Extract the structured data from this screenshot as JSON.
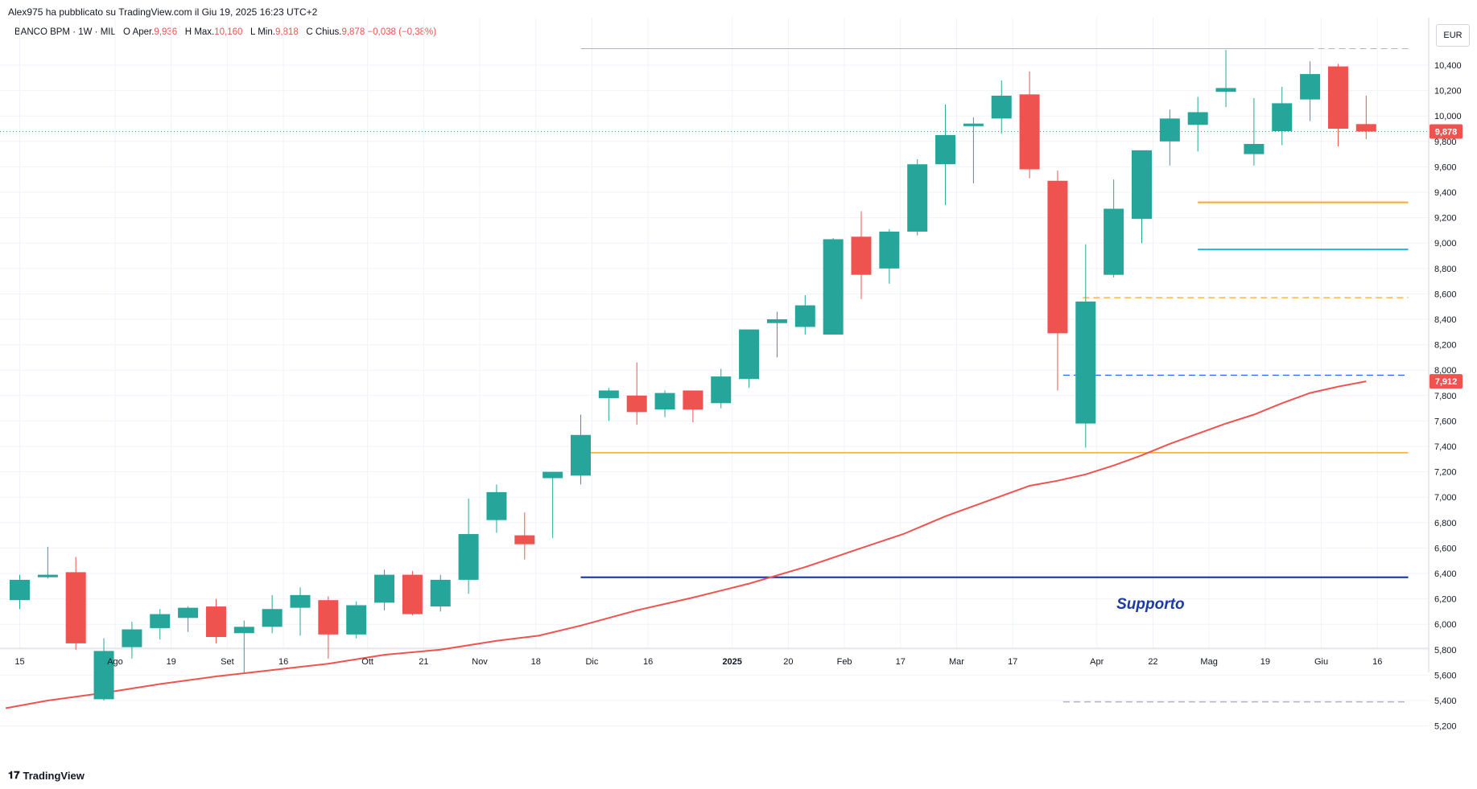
{
  "header": {
    "published": "Alex975 ha pubblicato su TradingView.com il Giu 19, 2025 16:23 UTC+2",
    "symbol": "BANCO BPM · 1W · MIL",
    "o_label": "O",
    "open_label": "Aper.",
    "open_val": "9,936",
    "h_label": "H",
    "high_label": "Max.",
    "high_val": "10,160",
    "l_label": "L",
    "low_label": "Min.",
    "low_val": "9,818",
    "c_label": "C",
    "close_label": "Chius.",
    "close_val": "9,878",
    "change": "−0,038 (−0,38%)"
  },
  "currency": "EUR",
  "footer": {
    "brand": "TradingView",
    "logo_icon": "tradingview-logo-icon"
  },
  "colors": {
    "up": "#26a69a",
    "down": "#ef5350",
    "ma": "#ef5350",
    "hline_orange": "#f9a825",
    "hline_cyan": "#26b6d4",
    "hline_blue": "#2962ff",
    "support_line": "#0d2ea8",
    "support_text": "#1b3aa8",
    "gray_line": "#b2b5be",
    "grid": "#f0f3fa"
  },
  "chart_data": {
    "type": "candlestick",
    "title": "BANCO BPM · 1W · MIL",
    "ylabel": "EUR",
    "ylim": [
      5.15,
      10.66
    ],
    "y_ticks": [
      "5,200",
      "5,400",
      "5,600",
      "5,800",
      "6,000",
      "6,200",
      "6,400",
      "6,600",
      "6,800",
      "7,000",
      "7,200",
      "7,400",
      "7,600",
      "7,800",
      "8,000",
      "8,200",
      "8,400",
      "8,600",
      "8,800",
      "9,000",
      "9,200",
      "9,400",
      "9,600",
      "9,800",
      "10,000",
      "10,200",
      "10,400"
    ],
    "x_ticks": [
      {
        "label": "15",
        "i": 0,
        "bold": false
      },
      {
        "label": "Ago",
        "i": 3.4,
        "bold": false
      },
      {
        "label": "19",
        "i": 5.4,
        "bold": false
      },
      {
        "label": "Set",
        "i": 7.4,
        "bold": false
      },
      {
        "label": "16",
        "i": 9.4,
        "bold": false
      },
      {
        "label": "Ott",
        "i": 12.4,
        "bold": false
      },
      {
        "label": "21",
        "i": 14.4,
        "bold": false
      },
      {
        "label": "Nov",
        "i": 16.4,
        "bold": false
      },
      {
        "label": "18",
        "i": 18.4,
        "bold": false
      },
      {
        "label": "Dic",
        "i": 20.4,
        "bold": false
      },
      {
        "label": "16",
        "i": 22.4,
        "bold": false
      },
      {
        "label": "2025",
        "i": 25.4,
        "bold": true
      },
      {
        "label": "20",
        "i": 27.4,
        "bold": false
      },
      {
        "label": "Feb",
        "i": 29.4,
        "bold": false
      },
      {
        "label": "17",
        "i": 31.4,
        "bold": false
      },
      {
        "label": "Mar",
        "i": 33.4,
        "bold": false
      },
      {
        "label": "17",
        "i": 35.4,
        "bold": false
      },
      {
        "label": "Apr",
        "i": 38.4,
        "bold": false
      },
      {
        "label": "22",
        "i": 40.4,
        "bold": false
      },
      {
        "label": "Mag",
        "i": 42.4,
        "bold": false
      },
      {
        "label": "19",
        "i": 44.4,
        "bold": false
      },
      {
        "label": "Giu",
        "i": 46.4,
        "bold": false
      },
      {
        "label": "16",
        "i": 48.4,
        "bold": false
      }
    ],
    "candles": [
      {
        "o": 6.19,
        "h": 6.39,
        "l": 6.12,
        "c": 6.35
      },
      {
        "o": 6.37,
        "h": 6.61,
        "l": 6.36,
        "c": 6.39
      },
      {
        "o": 6.41,
        "h": 6.53,
        "l": 5.8,
        "c": 5.85
      },
      {
        "o": 5.41,
        "h": 5.89,
        "l": 5.4,
        "c": 5.79
      },
      {
        "o": 5.82,
        "h": 6.02,
        "l": 5.73,
        "c": 5.96
      },
      {
        "o": 5.97,
        "h": 6.12,
        "l": 5.88,
        "c": 6.08
      },
      {
        "o": 6.05,
        "h": 6.14,
        "l": 5.94,
        "c": 6.13
      },
      {
        "o": 6.14,
        "h": 6.2,
        "l": 5.85,
        "c": 5.9
      },
      {
        "o": 5.93,
        "h": 6.03,
        "l": 5.62,
        "c": 5.98
      },
      {
        "o": 5.98,
        "h": 6.23,
        "l": 5.93,
        "c": 6.12
      },
      {
        "o": 6.13,
        "h": 6.29,
        "l": 5.91,
        "c": 6.23
      },
      {
        "o": 6.19,
        "h": 6.22,
        "l": 5.73,
        "c": 5.92
      },
      {
        "o": 5.92,
        "h": 6.18,
        "l": 5.89,
        "c": 6.15
      },
      {
        "o": 6.17,
        "h": 6.43,
        "l": 6.11,
        "c": 6.39
      },
      {
        "o": 6.39,
        "h": 6.42,
        "l": 6.07,
        "c": 6.08
      },
      {
        "o": 6.14,
        "h": 6.39,
        "l": 6.1,
        "c": 6.35
      },
      {
        "o": 6.35,
        "h": 6.99,
        "l": 6.24,
        "c": 6.71
      },
      {
        "o": 6.82,
        "h": 7.1,
        "l": 6.72,
        "c": 7.04
      },
      {
        "o": 6.7,
        "h": 6.88,
        "l": 6.51,
        "c": 6.63
      },
      {
        "o": 7.15,
        "h": 7.2,
        "l": 6.68,
        "c": 7.2
      },
      {
        "o": 7.17,
        "h": 7.65,
        "l": 7.1,
        "c": 7.49
      },
      {
        "o": 7.78,
        "h": 7.86,
        "l": 7.6,
        "c": 7.84
      },
      {
        "o": 7.8,
        "h": 8.06,
        "l": 7.57,
        "c": 7.67
      },
      {
        "o": 7.69,
        "h": 7.84,
        "l": 7.63,
        "c": 7.82
      },
      {
        "o": 7.84,
        "h": 7.84,
        "l": 7.59,
        "c": 7.69
      },
      {
        "o": 7.74,
        "h": 8.01,
        "l": 7.7,
        "c": 7.95
      },
      {
        "o": 7.93,
        "h": 8.32,
        "l": 7.86,
        "c": 8.32
      },
      {
        "o": 8.37,
        "h": 8.46,
        "l": 8.1,
        "c": 8.4
      },
      {
        "o": 8.34,
        "h": 8.59,
        "l": 8.28,
        "c": 8.51
      },
      {
        "o": 8.28,
        "h": 9.04,
        "l": 8.28,
        "c": 9.03
      },
      {
        "o": 9.05,
        "h": 9.25,
        "l": 8.56,
        "c": 8.75
      },
      {
        "o": 8.8,
        "h": 9.11,
        "l": 8.68,
        "c": 9.09
      },
      {
        "o": 9.09,
        "h": 9.66,
        "l": 9.06,
        "c": 9.62
      },
      {
        "o": 9.62,
        "h": 10.09,
        "l": 9.3,
        "c": 9.85
      },
      {
        "o": 9.92,
        "h": 9.99,
        "l": 9.47,
        "c": 9.94
      },
      {
        "o": 9.98,
        "h": 10.28,
        "l": 9.86,
        "c": 10.16
      },
      {
        "o": 10.17,
        "h": 10.35,
        "l": 9.51,
        "c": 9.58
      },
      {
        "o": 9.49,
        "h": 9.57,
        "l": 7.84,
        "c": 8.29
      },
      {
        "o": 7.58,
        "h": 8.99,
        "l": 7.39,
        "c": 8.54
      },
      {
        "o": 8.75,
        "h": 9.5,
        "l": 8.73,
        "c": 9.27
      },
      {
        "o": 9.19,
        "h": 9.73,
        "l": 9.0,
        "c": 9.73
      },
      {
        "o": 9.8,
        "h": 10.05,
        "l": 9.61,
        "c": 9.98
      },
      {
        "o": 9.93,
        "h": 10.15,
        "l": 9.72,
        "c": 10.03
      },
      {
        "o": 10.19,
        "h": 10.52,
        "l": 10.07,
        "c": 10.22
      },
      {
        "o": 9.7,
        "h": 10.14,
        "l": 9.61,
        "c": 9.78
      },
      {
        "o": 9.88,
        "h": 10.23,
        "l": 9.77,
        "c": 10.1
      },
      {
        "o": 10.13,
        "h": 10.43,
        "l": 9.96,
        "c": 10.33
      },
      {
        "o": 10.39,
        "h": 10.41,
        "l": 9.76,
        "c": 9.9
      },
      {
        "o": 9.936,
        "h": 10.16,
        "l": 9.818,
        "c": 9.878
      }
    ],
    "moving_average": [
      {
        "i": -0.5,
        "v": 5.34
      },
      {
        "i": 1.0,
        "v": 5.4
      },
      {
        "i": 3.0,
        "v": 5.46
      },
      {
        "i": 5.0,
        "v": 5.53
      },
      {
        "i": 7.0,
        "v": 5.59
      },
      {
        "i": 9.0,
        "v": 5.64
      },
      {
        "i": 11.0,
        "v": 5.69
      },
      {
        "i": 13.0,
        "v": 5.76
      },
      {
        "i": 15.0,
        "v": 5.8
      },
      {
        "i": 17.0,
        "v": 5.87
      },
      {
        "i": 18.5,
        "v": 5.91
      },
      {
        "i": 20.0,
        "v": 5.99
      },
      {
        "i": 21.0,
        "v": 6.05
      },
      {
        "i": 22.0,
        "v": 6.11
      },
      {
        "i": 24.0,
        "v": 6.21
      },
      {
        "i": 26.0,
        "v": 6.32
      },
      {
        "i": 28.0,
        "v": 6.45
      },
      {
        "i": 30.0,
        "v": 6.6
      },
      {
        "i": 31.5,
        "v": 6.71
      },
      {
        "i": 33.0,
        "v": 6.85
      },
      {
        "i": 34.5,
        "v": 6.97
      },
      {
        "i": 36.0,
        "v": 7.09
      },
      {
        "i": 37.0,
        "v": 7.13
      },
      {
        "i": 38.0,
        "v": 7.18
      },
      {
        "i": 39.0,
        "v": 7.25
      },
      {
        "i": 40.0,
        "v": 7.33
      },
      {
        "i": 41.0,
        "v": 7.42
      },
      {
        "i": 42.0,
        "v": 7.5
      },
      {
        "i": 43.0,
        "v": 7.58
      },
      {
        "i": 44.0,
        "v": 7.65
      },
      {
        "i": 45.0,
        "v": 7.74
      },
      {
        "i": 46.0,
        "v": 7.82
      },
      {
        "i": 47.0,
        "v": 7.87
      },
      {
        "i": 48.0,
        "v": 7.912
      }
    ],
    "last_price": {
      "value": 9.878,
      "label": "9,878"
    },
    "ma_last": {
      "value": 7.912,
      "label": "7,912"
    },
    "hlines": [
      {
        "value": 10.53,
        "from": 20.0,
        "to": 46.0,
        "color": "gray",
        "style": "solid",
        "width": 1
      },
      {
        "value": 10.53,
        "from": 43.3,
        "to": 49.5,
        "color": "gray",
        "style": "dashed",
        "width": 1
      },
      {
        "value": 9.32,
        "from": 42.0,
        "to": 49.5,
        "color": "orange",
        "style": "solid",
        "width": 2
      },
      {
        "value": 8.95,
        "from": 42.0,
        "to": 49.5,
        "color": "cyan",
        "style": "solid",
        "width": 2
      },
      {
        "value": 8.57,
        "from": 37.9,
        "to": 49.5,
        "color": "orange",
        "style": "dashed",
        "width": 1.2
      },
      {
        "value": 7.96,
        "from": 37.2,
        "to": 49.5,
        "color": "blue",
        "style": "dashed",
        "width": 1.2
      },
      {
        "value": 7.35,
        "from": 20.0,
        "to": 49.5,
        "color": "orange",
        "style": "solid",
        "width": 1.5
      },
      {
        "value": 6.37,
        "from": 20.0,
        "to": 49.5,
        "color": "support",
        "style": "solid",
        "width": 2
      },
      {
        "value": 5.39,
        "from": 37.2,
        "to": 49.5,
        "color": "gray",
        "style": "dashed",
        "width": 1.5
      }
    ],
    "annotations": [
      {
        "text": "Supporto",
        "i": 39.1,
        "value": 6.12
      }
    ],
    "grid": true
  }
}
